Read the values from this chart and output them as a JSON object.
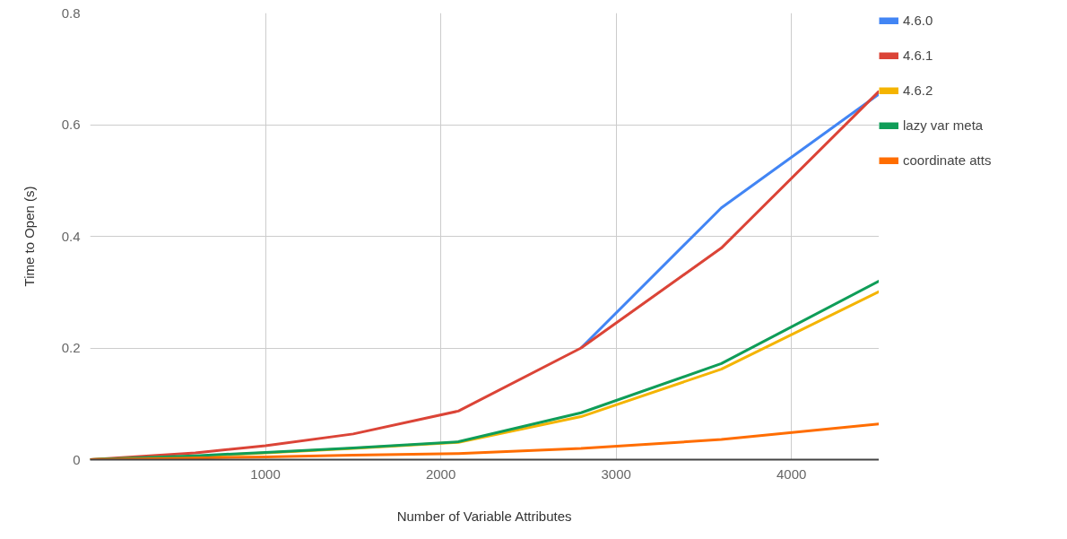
{
  "chart_data": {
    "type": "line",
    "xlabel": "Number of Variable Attributes",
    "ylabel": "Time to Open (s)",
    "x": [
      0,
      600,
      1000,
      1500,
      2100,
      2800,
      3600,
      4500
    ],
    "series": [
      {
        "name": "4.6.0",
        "color": "#4285f4",
        "values": [
          null,
          null,
          null,
          null,
          null,
          0.2,
          0.451,
          0.655
        ]
      },
      {
        "name": "4.6.1",
        "color": "#db4437",
        "values": [
          0,
          0.012,
          0.025,
          0.046,
          0.087,
          0.2,
          0.379,
          0.66
        ]
      },
      {
        "name": "4.6.2",
        "color": "#f4b400",
        "values": [
          0,
          0.006,
          0.012,
          0.02,
          0.031,
          0.077,
          0.162,
          0.301
        ]
      },
      {
        "name": "lazy var meta",
        "color": "#0f9d58",
        "values": [
          0,
          0.007,
          0.013,
          0.021,
          0.032,
          0.084,
          0.172,
          0.32
        ]
      },
      {
        "name": "coordinate atts",
        "color": "#ff6d00",
        "values": [
          0,
          0.003,
          0.005,
          0.008,
          0.011,
          0.02,
          0.036,
          0.064
        ]
      }
    ],
    "xlim": [
      0,
      4500
    ],
    "ylim": [
      0,
      0.8
    ],
    "xticks": [
      1000,
      2000,
      3000,
      4000
    ],
    "yticks": [
      0,
      0.2,
      0.4,
      0.6,
      0.8
    ],
    "grid": true,
    "legend": "top right",
    "marker": "none",
    "line_style": "solid"
  }
}
